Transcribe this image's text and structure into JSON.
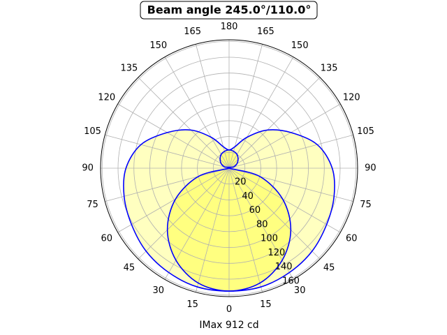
{
  "chart_data": {
    "type": "polar",
    "title": "Beam angle 245.0°/110.0°",
    "xlabel": "IMax 912 cd",
    "x": [
      0,
      15,
      30,
      45,
      60,
      75,
      90,
      105,
      120,
      135,
      150,
      165,
      180,
      195,
      210,
      225,
      240,
      255,
      270,
      285,
      300,
      315,
      330,
      345,
      360
    ],
    "series": [
      {
        "color": "#0000ff",
        "fill": "#ffffc0",
        "values": [
          155,
          155,
          152,
          148,
          142,
          137,
          130,
          115,
          90,
          68,
          45,
          28,
          23,
          28,
          45,
          68,
          90,
          115,
          130,
          137,
          142,
          148,
          152,
          155,
          155
        ]
      },
      {
        "color": "#0000ff",
        "fill": "#ffff80",
        "values": [
          155,
          150,
          134,
          110,
          78,
          40,
          0,
          6,
          11.5,
          16,
          20,
          22,
          23,
          22,
          20,
          16,
          11.5,
          6,
          0,
          40,
          78,
          110,
          134,
          150,
          155
        ]
      }
    ],
    "ylim": [
      0,
      162
    ],
    "yticks": [
      20,
      40,
      60,
      80,
      100,
      120,
      140,
      160
    ],
    "xticks": [
      0,
      15,
      30,
      45,
      60,
      75,
      90,
      105,
      120,
      135,
      150,
      165,
      180,
      {
        "value": 195,
        "label": "165"
      },
      {
        "value": 210,
        "label": "150"
      },
      {
        "value": 225,
        "label": "135"
      },
      {
        "value": 240,
        "label": "120"
      },
      {
        "value": 255,
        "label": "105"
      },
      {
        "value": 270,
        "label": "90"
      },
      {
        "value": 285,
        "label": "75"
      },
      {
        "value": 300,
        "label": "60"
      },
      {
        "value": 315,
        "label": "45"
      },
      {
        "value": 330,
        "label": "30"
      },
      {
        "value": 345,
        "label": "15"
      }
    ],
    "grid": true
  }
}
